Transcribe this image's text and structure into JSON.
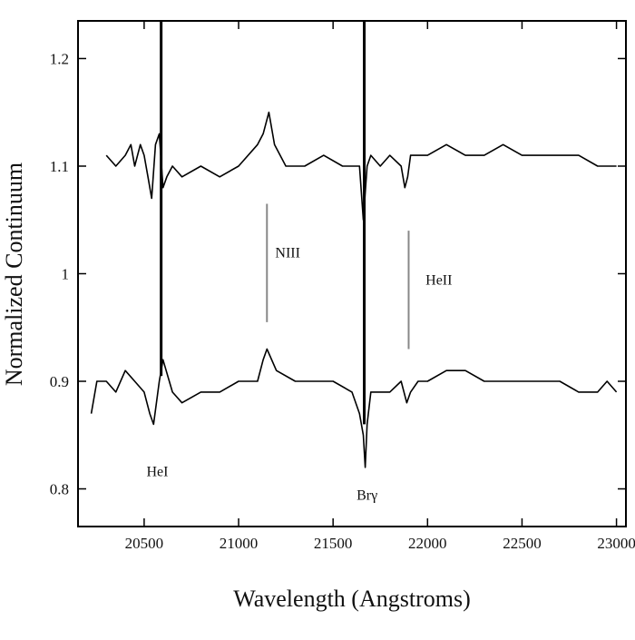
{
  "chart_data": {
    "type": "line",
    "title": "",
    "xlabel": "Wavelength (Angstroms)",
    "ylabel": "Normalized Continuum",
    "xlim": [
      20150,
      23050
    ],
    "ylim": [
      0.765,
      1.235
    ],
    "xticks": [
      20500,
      21000,
      21500,
      22000,
      22500,
      23000
    ],
    "yticks": [
      0.8,
      0.9,
      1.0,
      1.1,
      1.2
    ],
    "xtick_labels": [
      "20500",
      "21000",
      "21500",
      "22000",
      "22500",
      "23000"
    ],
    "ytick_labels": [
      "0.8",
      "0.9",
      "1",
      "1.1",
      "1.2"
    ],
    "grid": false,
    "legend": "none",
    "line_color": "#000000",
    "series": [
      {
        "x": [
          20300,
          20350,
          20400,
          20430,
          20450,
          20480,
          20500,
          20520,
          20540,
          20560,
          20580,
          20600,
          20620,
          20650,
          20700,
          20800,
          20900,
          21000,
          21100,
          21130,
          21160,
          21190,
          21250,
          21350,
          21450,
          21550,
          21600,
          21640,
          21660,
          21680,
          21700,
          21750,
          21800,
          21860,
          21880,
          21895,
          21910,
          21940,
          22000,
          22100,
          22200,
          22300,
          22400,
          22500,
          22600,
          22700,
          22800,
          22900,
          22950,
          23000
        ],
        "y": [
          1.11,
          1.1,
          1.11,
          1.12,
          1.1,
          1.12,
          1.11,
          1.09,
          1.07,
          1.12,
          1.13,
          1.08,
          1.09,
          1.1,
          1.09,
          1.1,
          1.09,
          1.1,
          1.12,
          1.13,
          1.15,
          1.12,
          1.1,
          1.1,
          1.11,
          1.1,
          1.1,
          1.1,
          1.05,
          1.1,
          1.11,
          1.1,
          1.11,
          1.1,
          1.08,
          1.09,
          1.11,
          1.11,
          1.11,
          1.12,
          1.11,
          1.11,
          1.12,
          1.11,
          1.11,
          1.11,
          1.11,
          1.1,
          1.1,
          1.1
        ]
      },
      {
        "x": [
          20220,
          20250,
          20300,
          20350,
          20400,
          20450,
          20500,
          20530,
          20550,
          20580,
          20600,
          20650,
          20700,
          20800,
          20900,
          21000,
          21100,
          21130,
          21150,
          21200,
          21300,
          21400,
          21500,
          21600,
          21640,
          21660,
          21670,
          21680,
          21700,
          21750,
          21800,
          21860,
          21890,
          21910,
          21950,
          22000,
          22100,
          22200,
          22300,
          22400,
          22500,
          22600,
          22700,
          22800,
          22900,
          22950,
          23000
        ],
        "y": [
          0.87,
          0.9,
          0.9,
          0.89,
          0.91,
          0.9,
          0.89,
          0.87,
          0.86,
          0.9,
          0.92,
          0.89,
          0.88,
          0.89,
          0.89,
          0.9,
          0.9,
          0.92,
          0.93,
          0.91,
          0.9,
          0.9,
          0.9,
          0.89,
          0.87,
          0.85,
          0.82,
          0.86,
          0.89,
          0.89,
          0.89,
          0.9,
          0.88,
          0.89,
          0.9,
          0.9,
          0.91,
          0.91,
          0.9,
          0.9,
          0.9,
          0.9,
          0.9,
          0.89,
          0.89,
          0.9,
          0.89
        ]
      }
    ],
    "annotations": [
      {
        "text": "HeI",
        "x": 20570,
        "y": 0.812
      },
      {
        "text": "NIII",
        "x": 21260,
        "y": 1.015
      },
      {
        "text": "HeII",
        "x": 22060,
        "y": 0.99
      },
      {
        "text": "Brγ",
        "x": 21680,
        "y": 0.79
      }
    ],
    "vertical_lines": [
      {
        "x": 20590,
        "y0": 0.905,
        "y1": 1.235,
        "color": "#000000"
      },
      {
        "x": 21665,
        "y0": 0.86,
        "y1": 1.235,
        "color": "#000000"
      },
      {
        "x": 21150,
        "y0": 0.955,
        "y1": 1.065,
        "color": "#888888"
      },
      {
        "x": 21900,
        "y0": 0.93,
        "y1": 1.04,
        "color": "#888888"
      }
    ]
  }
}
